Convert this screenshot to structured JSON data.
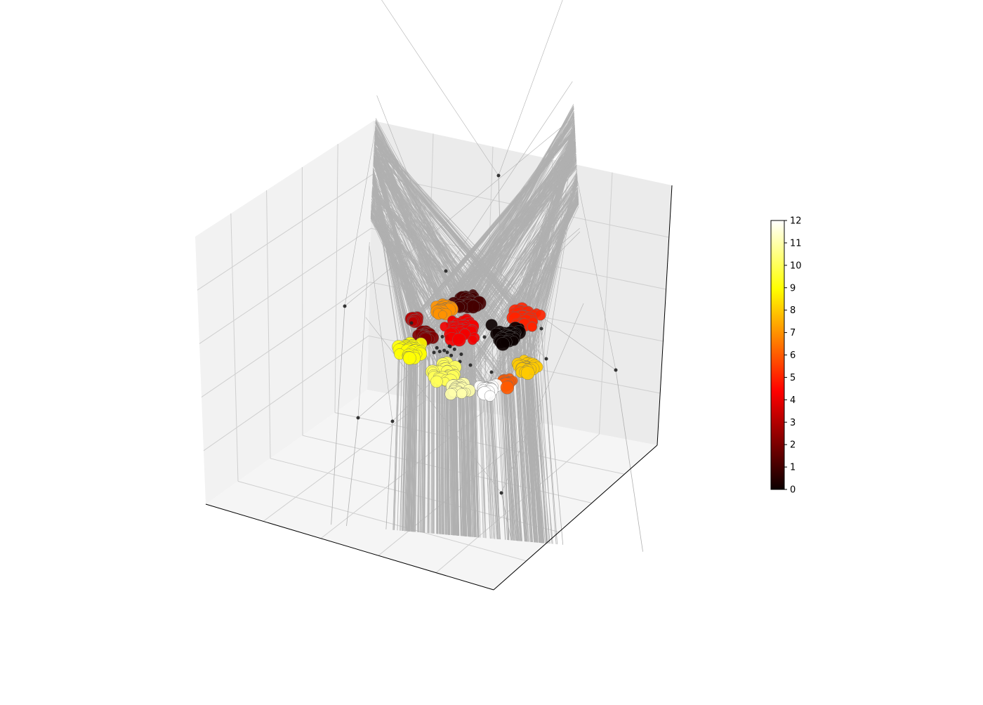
{
  "chart_data": {
    "type": "scatter",
    "projection": "3d",
    "title": "",
    "xlabel": "",
    "ylabel": "",
    "zlabel": "",
    "grid": true,
    "colormap": "hot",
    "colorbar": {
      "label": "",
      "min": 0,
      "max": 12,
      "ticks": [
        "0",
        "1",
        "2",
        "3",
        "4",
        "5",
        "6",
        "7",
        "8",
        "9",
        "10",
        "11",
        "12"
      ]
    },
    "clusters": [
      {
        "value": 0,
        "count": 34
      },
      {
        "value": 1,
        "count": 34
      },
      {
        "value": 2,
        "count": 24
      },
      {
        "value": 3,
        "count": 24
      },
      {
        "value": 4,
        "count": 46
      },
      {
        "value": 5,
        "count": 44
      },
      {
        "value": 6,
        "count": 16
      },
      {
        "value": 7,
        "count": 26
      },
      {
        "value": 8,
        "count": 30
      },
      {
        "value": 9,
        "count": 38
      },
      {
        "value": 10,
        "count": 32
      },
      {
        "value": 11,
        "count": 26
      },
      {
        "value": 12,
        "count": 20
      }
    ],
    "outliers": {
      "value": 0,
      "count": 30
    }
  }
}
